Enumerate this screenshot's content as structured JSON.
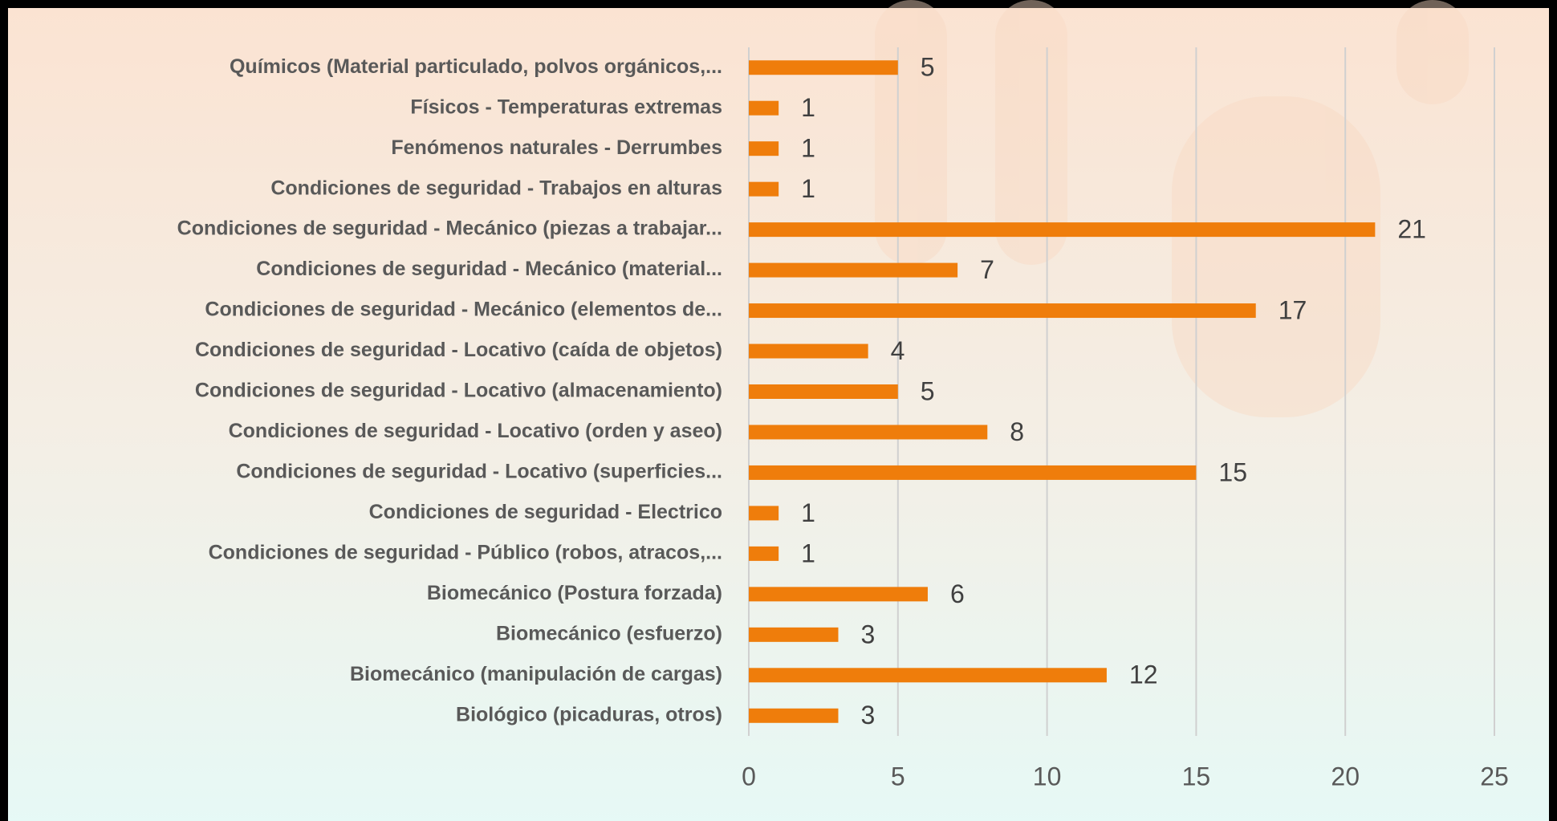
{
  "chart_data": {
    "type": "bar",
    "orientation": "horizontal",
    "categories": [
      "Químicos  (Material particulado, polvos orgánicos,...",
      "Físicos - Temperaturas extremas",
      "Fenómenos naturales - Derrumbes",
      "Condiciones de seguridad - Trabajos en alturas",
      "Condiciones de seguridad - Mecánico (piezas a trabajar...",
      "Condiciones de seguridad - Mecánico (material...",
      "Condiciones de seguridad - Mecánico (elementos de...",
      "Condiciones de seguridad - Locativo (caída de objetos)",
      "Condiciones de seguridad - Locativo (almacenamiento)",
      "Condiciones de seguridad - Locativo (orden y aseo)",
      "Condiciones de seguridad - Locativo (superficies...",
      "Condiciones de seguridad - Electrico",
      "Condiciones de seguridad - Público (robos, atracos,...",
      "Biomecánico (Postura forzada)",
      "Biomecánico (esfuerzo)",
      "Biomecánico (manipulación de cargas)",
      "Biológico (picaduras, otros)"
    ],
    "values": [
      5,
      1,
      1,
      1,
      21,
      7,
      17,
      4,
      5,
      8,
      15,
      1,
      1,
      6,
      3,
      12,
      3
    ],
    "color": "#ef7d0b",
    "xlim": [
      0,
      25
    ],
    "xticks": [
      0,
      5,
      10,
      15,
      20,
      25
    ],
    "grid": true
  }
}
